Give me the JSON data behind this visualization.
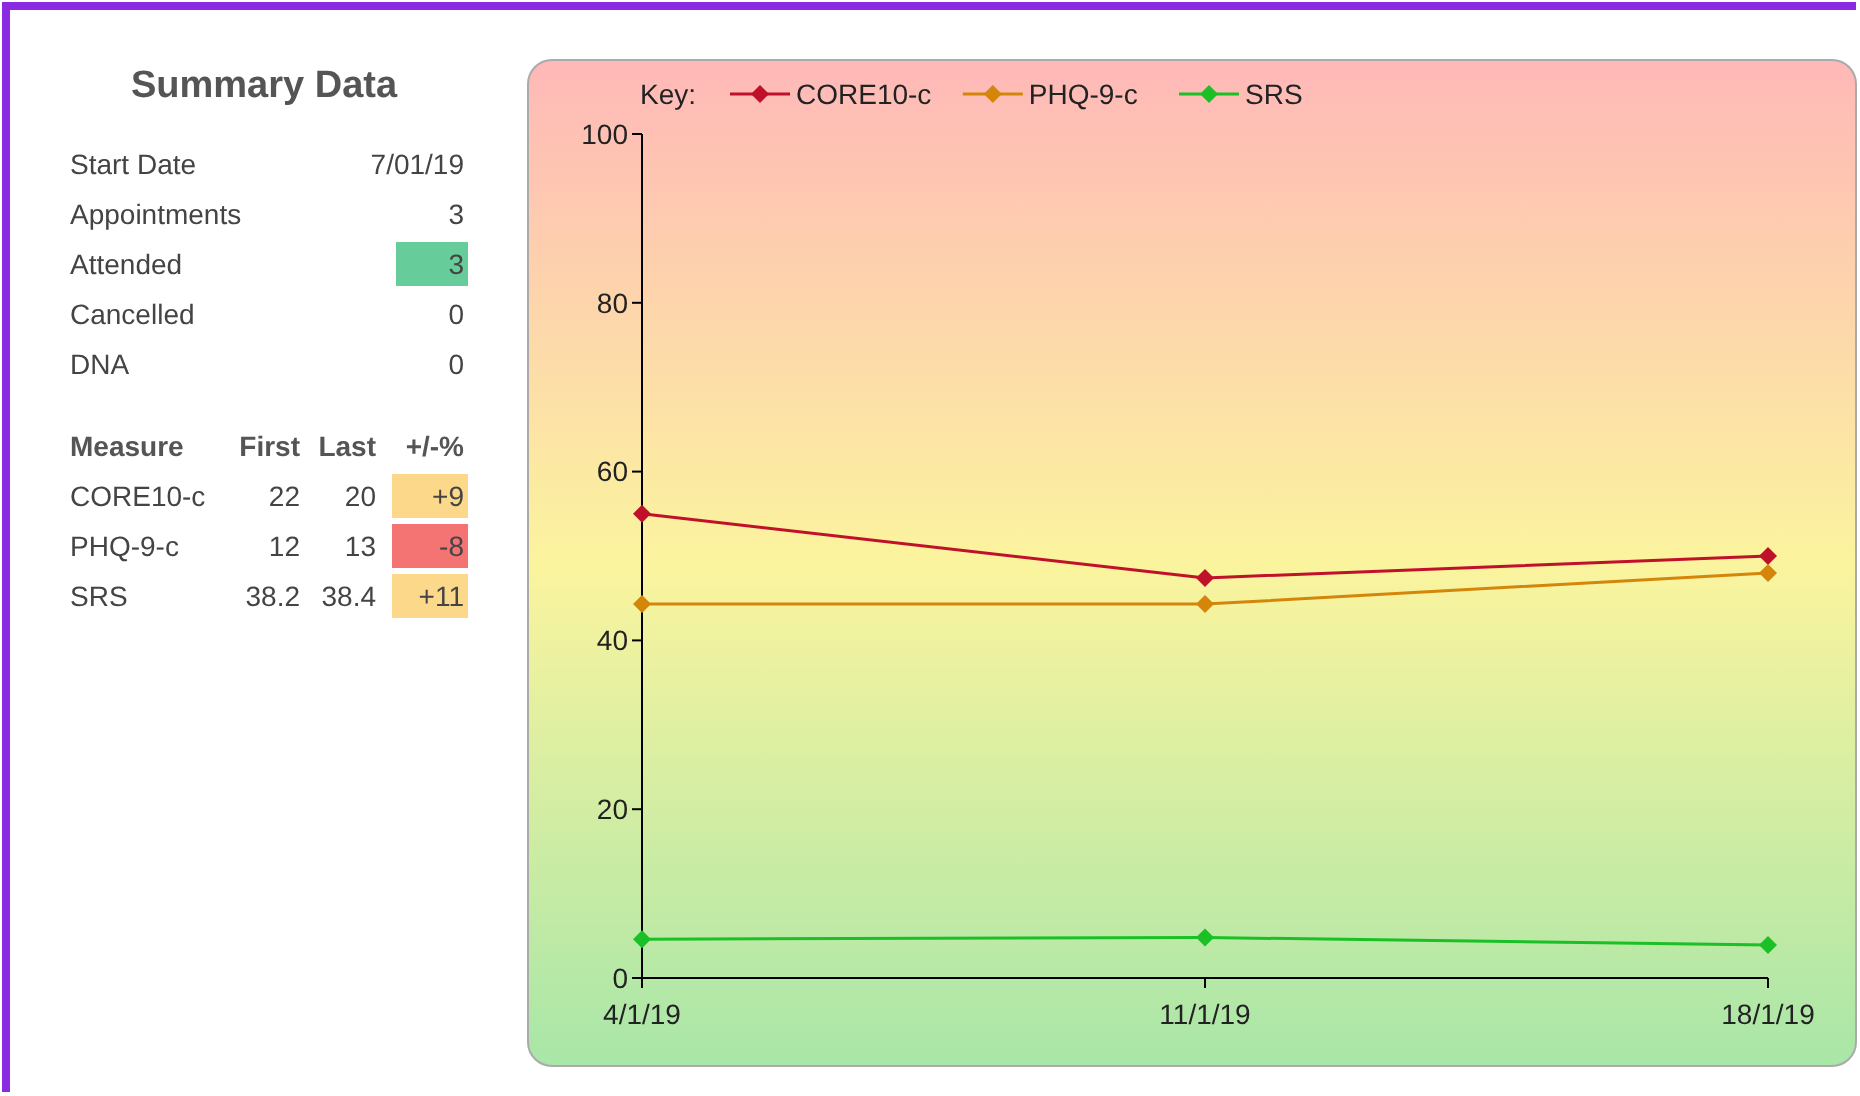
{
  "chart_data": [
    {
      "type": "other",
      "title": "Summary Data",
      "annotations": [
        "Start Date",
        "7/01/19",
        "Appointments",
        "3",
        "Attended",
        "3",
        "Cancelled",
        "0",
        "DNA",
        "0",
        "Measure",
        "First",
        "Last",
        "+/-%",
        "CORE10-c",
        "22",
        "20",
        "+9",
        "PHQ-9-c",
        "12",
        "13",
        "-8",
        "SRS",
        "38.2",
        "38.4",
        "+11"
      ],
      "colors": [
        null,
        null,
        null,
        null,
        null,
        "#66cc99",
        null,
        null,
        null,
        null,
        null,
        null,
        null,
        null,
        null,
        null,
        null,
        "#fcd98a",
        null,
        null,
        null,
        "#f47373",
        null,
        null,
        null,
        "#fcd98a"
      ]
    },
    {
      "type": "line",
      "categories": [
        "4/1/19",
        "11/1/19",
        "18/1/19"
      ],
      "legend_title": "Key:",
      "legend": "top left",
      "marker": "diamond",
      "ylim": [
        0,
        100
      ],
      "yticks": [
        0,
        20,
        40,
        60,
        80,
        100
      ],
      "grid": false,
      "series": [
        {
          "name": "CORE10-c",
          "color": "#c0112b",
          "values": [
            55,
            47.4,
            50
          ]
        },
        {
          "name": "PHQ-9-c",
          "color": "#d4860b",
          "values": [
            44.3,
            44.3,
            48
          ]
        },
        {
          "name": "SRS",
          "color": "#1bbf26",
          "values": [
            4.6,
            4.8,
            3.9
          ]
        }
      ]
    }
  ]
}
